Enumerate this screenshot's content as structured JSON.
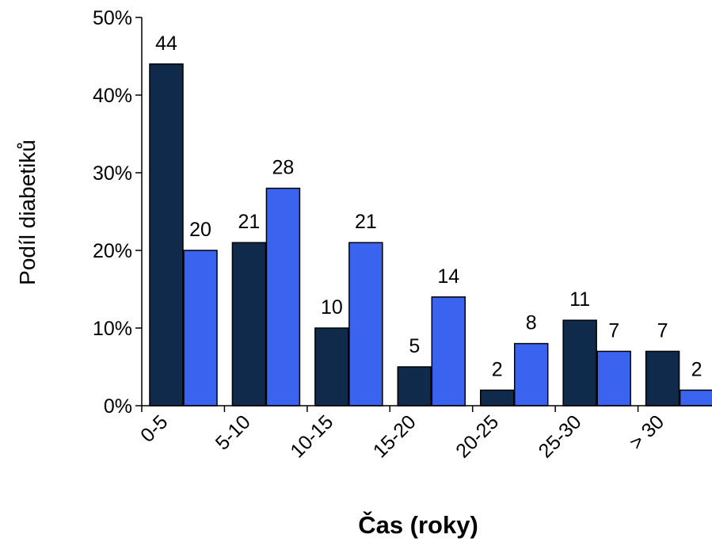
{
  "chart_data": {
    "type": "bar",
    "title": "",
    "xlabel": "Čas (roky)",
    "ylabel": "Podíl diabetiků",
    "categories": [
      "0-5",
      "5-10",
      "10-15",
      "15-20",
      "20-25",
      "25-30",
      "> 30"
    ],
    "series": [
      {
        "values": [
          44,
          21,
          10,
          5,
          2,
          11,
          7
        ],
        "color": "#0f2a4a"
      },
      {
        "values": [
          20,
          28,
          21,
          14,
          8,
          7,
          2
        ],
        "color": "#3a63f0"
      }
    ],
    "yticks": [
      "0%",
      "10%",
      "20%",
      "30%",
      "40%",
      "50%"
    ],
    "ylim": [
      0,
      50
    ],
    "grid": false,
    "legend": "none"
  }
}
